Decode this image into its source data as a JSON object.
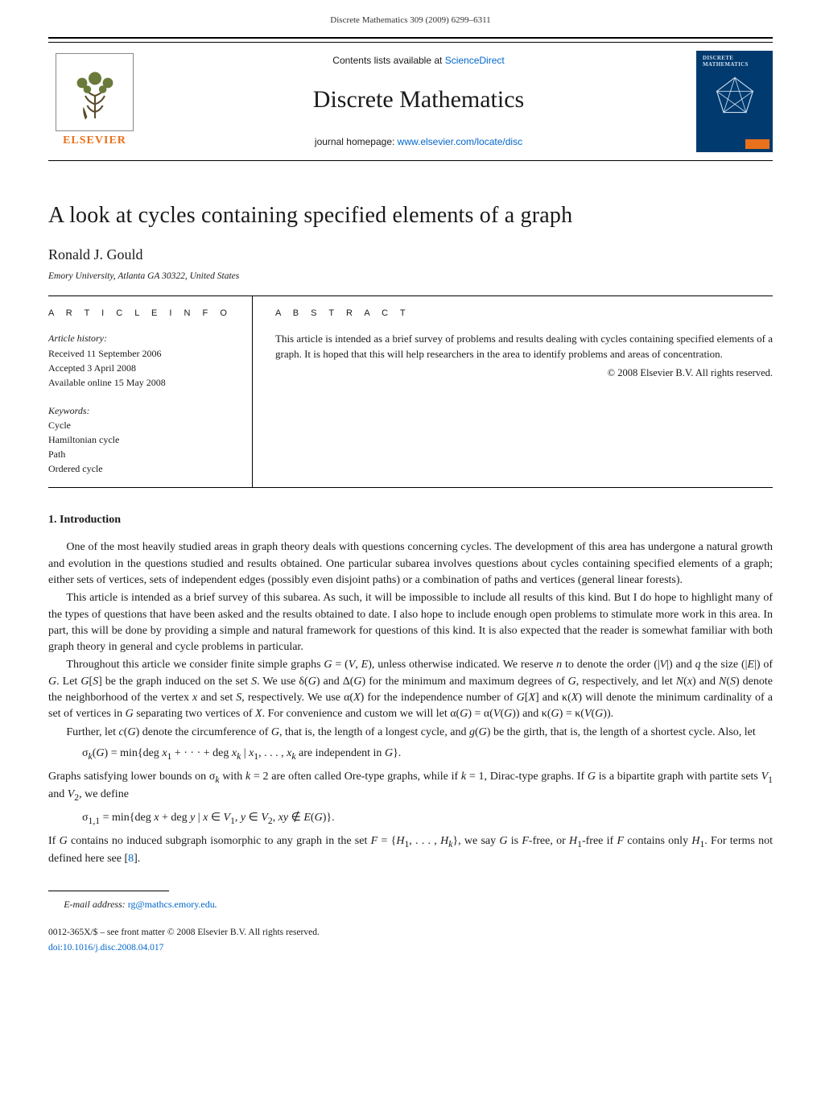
{
  "running_header": "Discrete Mathematics 309 (2009) 6299–6311",
  "masthead": {
    "sciencedirect_prefix": "Contents lists available at ",
    "sciencedirect_linktext": "ScienceDirect",
    "journal_title": "Discrete Mathematics",
    "homepage_prefix": "journal homepage: ",
    "homepage_linktext": "www.elsevier.com/locate/disc",
    "publisher_logo_text": "ELSEVIER",
    "cover_label_line1": "DISCRETE",
    "cover_label_line2": "MATHEMATICS"
  },
  "article": {
    "title": "A look at cycles containing specified elements of a graph",
    "author": "Ronald J. Gould",
    "affiliation": "Emory University, Atlanta GA 30322, United States"
  },
  "info": {
    "label": "A R T I C L E     I N F O",
    "history_label": "Article history:",
    "received": "Received 11 September 2006",
    "accepted": "Accepted 3 April 2008",
    "online": "Available online 15 May 2008",
    "keywords_label": "Keywords:",
    "keywords": [
      "Cycle",
      "Hamiltonian cycle",
      "Path",
      "Ordered cycle"
    ]
  },
  "abstract": {
    "label": "A B S T R A C T",
    "text": "This article is intended as a brief survey of problems and results dealing with cycles containing specified elements of a graph. It is hoped that this will help researchers in the area to identify problems and areas of concentration.",
    "copyright": "© 2008 Elsevier B.V. All rights reserved."
  },
  "intro": {
    "heading": "1.  Introduction",
    "p1": "One of the most heavily studied areas in graph theory deals with questions concerning cycles. The development of this area has undergone a natural growth and evolution in the questions studied and results obtained. One particular subarea involves questions about cycles containing specified elements of a graph; either sets of vertices, sets of independent edges (possibly even disjoint paths) or a combination of paths and vertices (general linear forests).",
    "p2": "This article is intended as a brief survey of this subarea. As such, it will be impossible to include all results of this kind. But I do hope to highlight many of the types of questions that have been asked and the results obtained to date. I also hope to include enough open problems to stimulate more work in this area. In part, this will be done by providing a simple and natural framework for questions of this kind. It is also expected that the reader is somewhat familiar with both graph theory in general and cycle problems in particular.",
    "p3_html": "Throughout this article we consider finite simple graphs <span class=\"ital\">G</span> = (<span class=\"ital\">V</span>, <span class=\"ital\">E</span>), unless otherwise indicated. We reserve <span class=\"ital\">n</span> to denote the order (|<span class=\"ital\">V</span>|) and <span class=\"ital\">q</span> the size (|<span class=\"ital\">E</span>|) of <span class=\"ital\">G</span>. Let <span class=\"ital\">G</span>[<span class=\"ital\">S</span>] be the graph induced on the set <span class=\"ital\">S</span>. We use δ(<span class=\"ital\">G</span>) and Δ(<span class=\"ital\">G</span>) for the minimum and maximum degrees of <span class=\"ital\">G</span>, respectively, and let <span class=\"ital\">N</span>(<span class=\"ital\">x</span>) and <span class=\"ital\">N</span>(<span class=\"ital\">S</span>) denote the neighborhood of the vertex <span class=\"ital\">x</span> and set <span class=\"ital\">S</span>, respectively. We use α(<span class=\"ital\">X</span>) for the independence number of <span class=\"ital\">G</span>[<span class=\"ital\">X</span>] and κ(<span class=\"ital\">X</span>) will denote the minimum cardinality of a set of vertices in <span class=\"ital\">G</span> separating two vertices of <span class=\"ital\">X</span>. For convenience and custom we will let α(<span class=\"ital\">G</span>) = α(<span class=\"ital\">V</span>(<span class=\"ital\">G</span>)) and κ(<span class=\"ital\">G</span>) = κ(<span class=\"ital\">V</span>(<span class=\"ital\">G</span>)).",
    "p4_html": "Further, let <span class=\"ital\">c</span>(<span class=\"ital\">G</span>) denote the circumference of <span class=\"ital\">G</span>, that is, the length of a longest cycle, and <span class=\"ital\">g</span>(<span class=\"ital\">G</span>) be the girth, that is, the length of a shortest cycle. Also, let",
    "formula1_html": "σ<sub><span class=\"ital\">k</span></sub>(<span class=\"ital\">G</span>) = min{deg <span class=\"ital\">x</span><sub>1</sub> + · · · + deg <span class=\"ital\">x</span><sub><span class=\"ital\">k</span></sub> | <span class=\"ital\">x</span><sub>1</sub>, . . . , <span class=\"ital\">x</span><sub><span class=\"ital\">k</span></sub> are independent in <span class=\"ital\">G</span>}.",
    "p5_html": "Graphs satisfying lower bounds on σ<sub><span class=\"ital\">k</span></sub> with <span class=\"ital\">k</span> = 2 are often called Ore-type graphs, while if <span class=\"ital\">k</span> = 1, Dirac-type graphs. If <span class=\"ital\">G</span> is a bipartite graph with partite sets <span class=\"ital\">V</span><sub>1</sub> and <span class=\"ital\">V</span><sub>2</sub>, we define",
    "formula2_html": "σ<sub>1,1</sub> = min{deg <span class=\"ital\">x</span> + deg <span class=\"ital\">y</span> | <span class=\"ital\">x</span> ∈ <span class=\"ital\">V</span><sub>1</sub>, <span class=\"ital\">y</span> ∈ <span class=\"ital\">V</span><sub>2</sub>, <span class=\"ital\">xy</span> ∉ <span class=\"ital\">E</span>(<span class=\"ital\">G</span>)}.",
    "p6_html": "If <span class=\"ital\">G</span> contains no induced subgraph isomorphic to any graph in the set <span class=\"ital\">F</span> = {<span class=\"ital\">H</span><sub>1</sub>, . . . , <span class=\"ital\">H</span><sub><span class=\"ital\">k</span></sub>}, we say <span class=\"ital\">G</span> is <span class=\"ital\">F</span>-free, or <span class=\"ital\">H</span><sub>1</sub>-free if <span class=\"ital\">F</span> contains only <span class=\"ital\">H</span><sub>1</sub>. For terms not defined here see [<a class=\"ref-link\" data-name=\"reference-link-8\" data-interactable=\"true\">8</a>]."
  },
  "footer": {
    "email_label": "E-mail address: ",
    "email_linktext": "rg@mathcs.emory.edu",
    "email_suffix": ".",
    "legal": "0012-365X/$ – see front matter © 2008 Elsevier B.V. All rights reserved.",
    "doi": "doi:10.1016/j.disc.2008.04.017"
  },
  "colors": {
    "link": "#0066cc",
    "elsevier_orange": "#e9711c",
    "cover_blue": "#003a6e",
    "text": "#1a1a1a"
  }
}
